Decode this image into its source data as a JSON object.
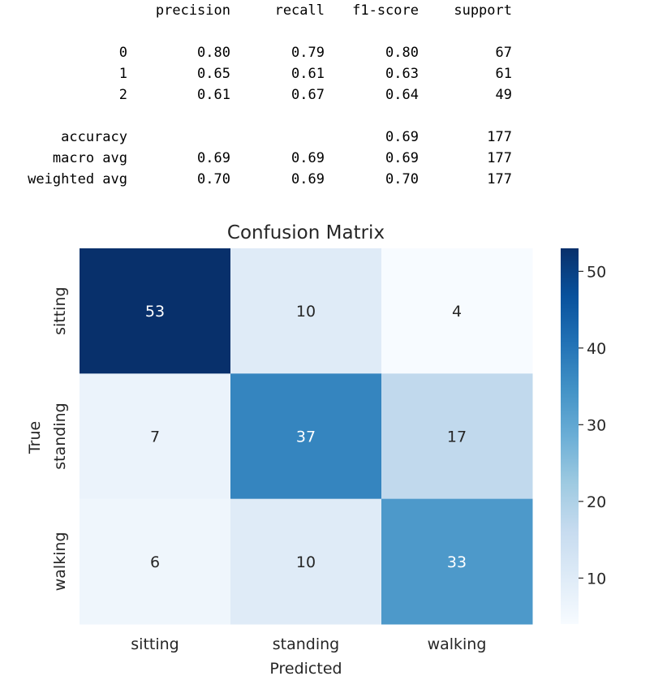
{
  "report": {
    "headers": [
      "precision",
      "recall",
      "f1-score",
      "support"
    ],
    "class_rows": [
      {
        "label": "0",
        "values": [
          "0.80",
          "0.79",
          "0.80",
          "67"
        ]
      },
      {
        "label": "1",
        "values": [
          "0.65",
          "0.61",
          "0.63",
          "61"
        ]
      },
      {
        "label": "2",
        "values": [
          "0.61",
          "0.67",
          "0.64",
          "49"
        ]
      }
    ],
    "summary_rows": [
      {
        "label": "accuracy",
        "values": [
          "",
          "",
          "0.69",
          "177"
        ]
      },
      {
        "label": "macro avg",
        "values": [
          "0.69",
          "0.69",
          "0.69",
          "177"
        ]
      },
      {
        "label": "weighted avg",
        "values": [
          "0.70",
          "0.69",
          "0.70",
          "177"
        ]
      }
    ]
  },
  "chart_data": {
    "type": "heatmap",
    "title": "Confusion Matrix",
    "xlabel": "Predicted",
    "ylabel": "True",
    "x_categories": [
      "sitting",
      "standing",
      "walking"
    ],
    "y_categories": [
      "sitting",
      "standing",
      "walking"
    ],
    "values": [
      [
        53,
        10,
        4
      ],
      [
        7,
        37,
        17
      ],
      [
        6,
        10,
        33
      ]
    ],
    "colormap": "Blues",
    "color_low": "#f7fbff",
    "color_high": "#08306b",
    "vmin": 4,
    "vmax": 53,
    "colorbar_ticks": [
      10,
      20,
      30,
      40,
      50
    ]
  }
}
